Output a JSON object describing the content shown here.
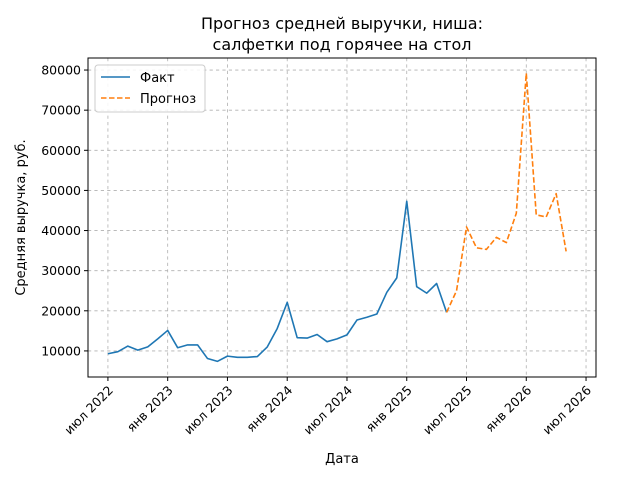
{
  "chart_data": {
    "type": "line",
    "title_lines": [
      "Прогноз средней выручки, ниша:",
      "салфетки под горячее на стол"
    ],
    "xlabel": "Дата",
    "ylabel": "Средняя выручка, руб.",
    "x_range": [
      "2022-05",
      "2026-08"
    ],
    "ylim": [
      3500,
      83000
    ],
    "x_ticks": [
      {
        "date": "2022-07",
        "label": "июл 2022"
      },
      {
        "date": "2023-01",
        "label": "янв 2023"
      },
      {
        "date": "2023-07",
        "label": "июл 2023"
      },
      {
        "date": "2024-01",
        "label": "янв 2024"
      },
      {
        "date": "2024-07",
        "label": "июл 2024"
      },
      {
        "date": "2025-01",
        "label": "янв 2025"
      },
      {
        "date": "2025-07",
        "label": "июл 2025"
      },
      {
        "date": "2026-01",
        "label": "янв 2026"
      },
      {
        "date": "2026-07",
        "label": "июл 2026"
      }
    ],
    "y_ticks": [
      {
        "value": 10000,
        "label": "10000"
      },
      {
        "value": 20000,
        "label": "20000"
      },
      {
        "value": 30000,
        "label": "30000"
      },
      {
        "value": 40000,
        "label": "40000"
      },
      {
        "value": 50000,
        "label": "50000"
      },
      {
        "value": 60000,
        "label": "60000"
      },
      {
        "value": 70000,
        "label": "70000"
      },
      {
        "value": 80000,
        "label": "80000"
      }
    ],
    "grid": true,
    "legend_position": "top-left",
    "series": [
      {
        "name": "Факт",
        "color": "#1f77b4",
        "style": "solid",
        "points": [
          [
            "2022-07",
            9300
          ],
          [
            "2022-08",
            9800
          ],
          [
            "2022-09",
            11200
          ],
          [
            "2022-10",
            10200
          ],
          [
            "2022-11",
            11000
          ],
          [
            "2022-12",
            13000
          ],
          [
            "2023-01",
            15100
          ],
          [
            "2023-02",
            10800
          ],
          [
            "2023-03",
            11500
          ],
          [
            "2023-04",
            11500
          ],
          [
            "2023-05",
            8100
          ],
          [
            "2023-06",
            7400
          ],
          [
            "2023-07",
            8700
          ],
          [
            "2023-08",
            8400
          ],
          [
            "2023-09",
            8400
          ],
          [
            "2023-10",
            8600
          ],
          [
            "2023-11",
            11000
          ],
          [
            "2023-12",
            15600
          ],
          [
            "2024-01",
            22100
          ],
          [
            "2024-02",
            13300
          ],
          [
            "2024-03",
            13200
          ],
          [
            "2024-04",
            14100
          ],
          [
            "2024-05",
            12300
          ],
          [
            "2024-06",
            13000
          ],
          [
            "2024-07",
            14000
          ],
          [
            "2024-08",
            17700
          ],
          [
            "2024-09",
            18400
          ],
          [
            "2024-10",
            19200
          ],
          [
            "2024-11",
            24600
          ],
          [
            "2024-12",
            28200
          ],
          [
            "2025-01",
            47300
          ],
          [
            "2025-02",
            26000
          ],
          [
            "2025-03",
            24400
          ],
          [
            "2025-04",
            26800
          ],
          [
            "2025-05",
            19600
          ]
        ]
      },
      {
        "name": "Прогноз",
        "color": "#ff7f0e",
        "style": "dashed",
        "points": [
          [
            "2025-05",
            19600
          ],
          [
            "2025-06",
            25000
          ],
          [
            "2025-07",
            40900
          ],
          [
            "2025-08",
            35700
          ],
          [
            "2025-09",
            35300
          ],
          [
            "2025-10",
            38300
          ],
          [
            "2025-11",
            37000
          ],
          [
            "2025-12",
            44300
          ],
          [
            "2026-01",
            79200
          ],
          [
            "2026-02",
            43900
          ],
          [
            "2026-03",
            43400
          ],
          [
            "2026-04",
            49200
          ],
          [
            "2026-05",
            34800
          ]
        ]
      }
    ]
  }
}
